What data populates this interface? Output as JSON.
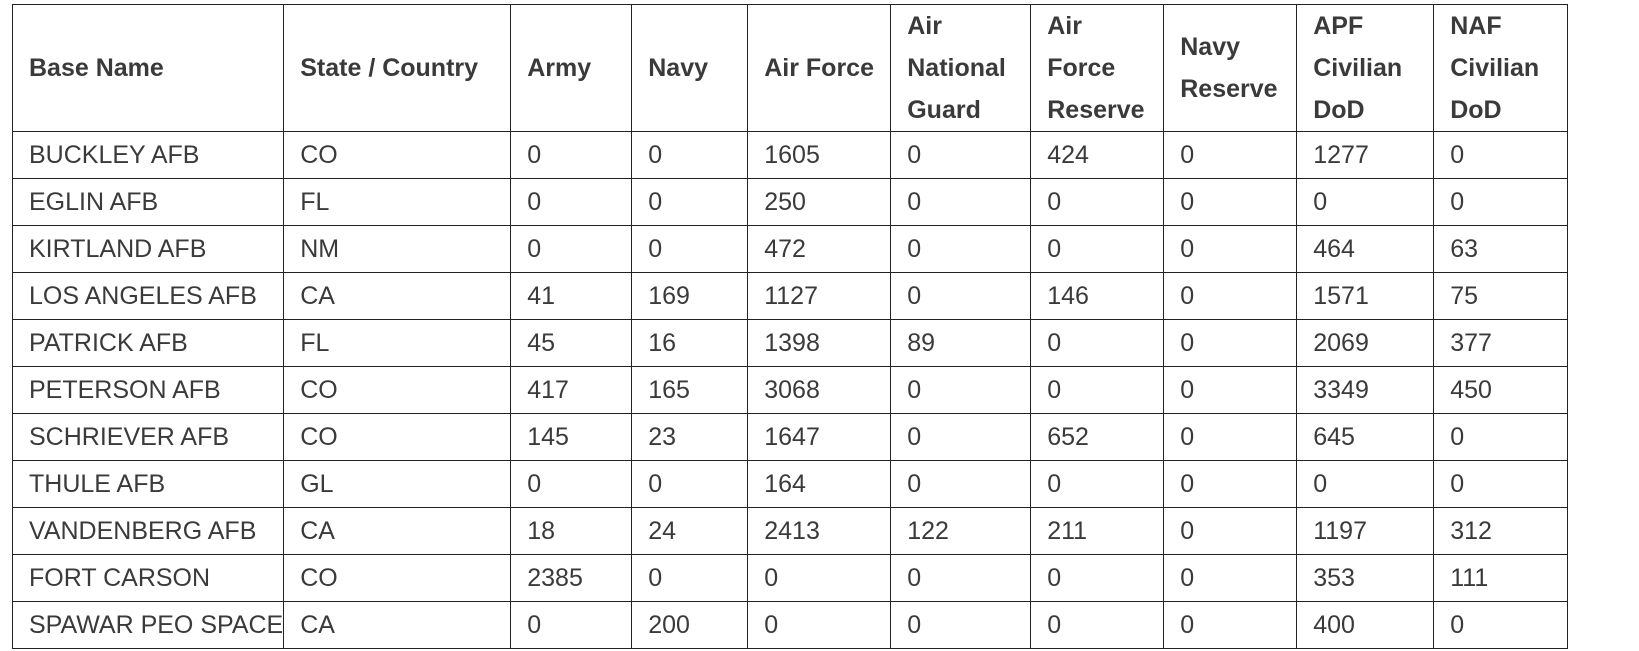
{
  "table": {
    "headers": [
      [
        "Base Name"
      ],
      [
        "State / Country"
      ],
      [
        "Army"
      ],
      [
        "Navy"
      ],
      [
        "Air Force"
      ],
      [
        "Air",
        "National",
        "Guard"
      ],
      [
        "Air",
        "Force",
        "Reserve"
      ],
      [
        "Navy",
        "Reserve"
      ],
      [
        "APF",
        "Civilian",
        "DoD"
      ],
      [
        "NAF",
        "Civilian",
        "DoD"
      ]
    ],
    "rows": [
      [
        "BUCKLEY AFB",
        "CO",
        "0",
        "0",
        "1605",
        "0",
        "424",
        "0",
        "1277",
        "0"
      ],
      [
        "EGLIN AFB",
        "FL",
        "0",
        "0",
        "250",
        "0",
        "0",
        "0",
        "0",
        "0"
      ],
      [
        "KIRTLAND AFB",
        "NM",
        "0",
        "0",
        "472",
        "0",
        "0",
        "0",
        "464",
        "63"
      ],
      [
        "LOS ANGELES AFB",
        "CA",
        "41",
        "169",
        "1127",
        "0",
        "146",
        "0",
        "1571",
        "75"
      ],
      [
        "PATRICK AFB",
        "FL",
        "45",
        "16",
        "1398",
        "89",
        "0",
        "0",
        "2069",
        "377"
      ],
      [
        "PETERSON AFB",
        "CO",
        "417",
        "165",
        "3068",
        "0",
        "0",
        "0",
        "3349",
        "450"
      ],
      [
        "SCHRIEVER AFB",
        "CO",
        "145",
        "23",
        "1647",
        "0",
        "652",
        "0",
        "645",
        "0"
      ],
      [
        "THULE AFB",
        "GL",
        "0",
        "0",
        "164",
        "0",
        "0",
        "0",
        "0",
        "0"
      ],
      [
        "VANDENBERG AFB",
        "CA",
        "18",
        "24",
        "2413",
        "122",
        "211",
        "0",
        "1197",
        "312"
      ],
      [
        "FORT CARSON",
        "CO",
        "2385",
        "0",
        "0",
        "0",
        "0",
        "0",
        "353",
        "111"
      ],
      [
        "SPAWAR PEO SPACE",
        "CA",
        "0",
        "200",
        "0",
        "0",
        "0",
        "0",
        "400",
        "0"
      ]
    ]
  }
}
